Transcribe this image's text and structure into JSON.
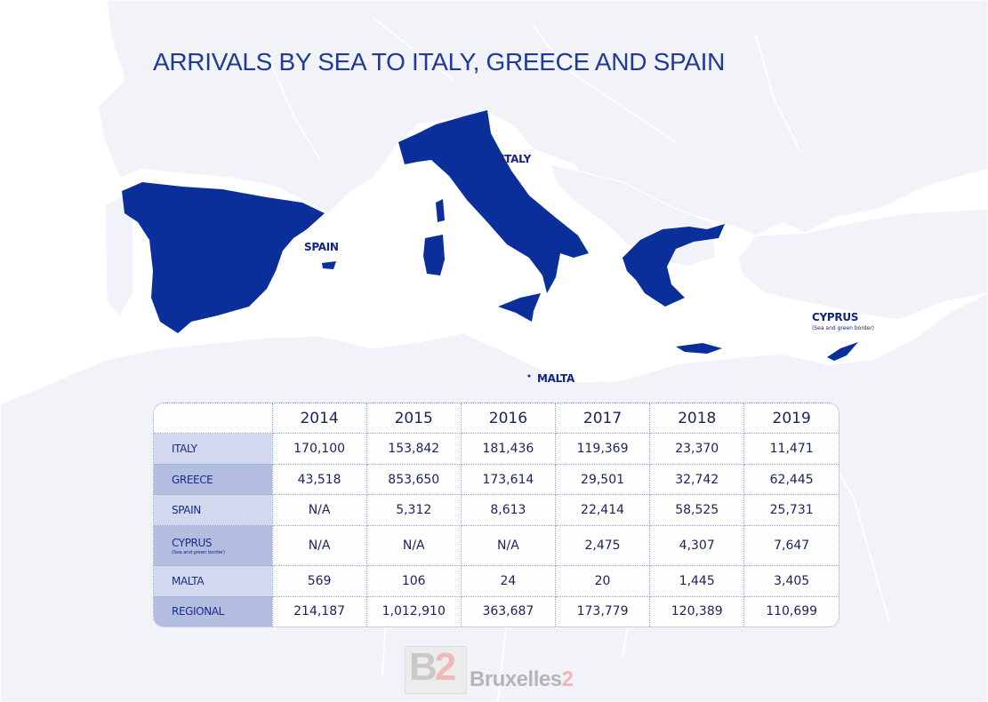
{
  "title": "ARRIVALS BY SEA TO ITALY, GREECE AND SPAIN",
  "map": {
    "labels": {
      "italy": "ITALY",
      "spain": "SPAIN",
      "cyprus": "CYPRUS",
      "cyprus_note": "(Sea and green border)",
      "malta": "MALTA"
    },
    "highlight_color": "#0a2f9a",
    "background_land_color": "#f1f3f9"
  },
  "chart_data": {
    "type": "table",
    "columns": [
      "2014",
      "2015",
      "2016",
      "2017",
      "2018",
      "2019"
    ],
    "rows": [
      {
        "label": "ITALY",
        "values": [
          "170,100",
          "153,842",
          "181,436",
          "119,369",
          "23,370",
          "11,471"
        ]
      },
      {
        "label": "GREECE",
        "values": [
          "43,518",
          "853,650",
          "173,614",
          "29,501",
          "32,742",
          "62,445"
        ]
      },
      {
        "label": "SPAIN",
        "values": [
          "N/A",
          "5,312",
          "8,613",
          "22,414",
          "58,525",
          "25,731"
        ]
      },
      {
        "label": "CYPRUS",
        "note": "(Sea and green border)",
        "values": [
          "N/A",
          "N/A",
          "N/A",
          "2,475",
          "4,307",
          "7,647"
        ]
      },
      {
        "label": "MALTA",
        "values": [
          "569",
          "106",
          "24",
          "20",
          "1,445",
          "3,405"
        ]
      },
      {
        "label": "REGIONAL",
        "values": [
          "214,187",
          "1,012,910",
          "363,687",
          "173,779",
          "120,389",
          "110,699"
        ]
      }
    ]
  },
  "watermark": {
    "mark": "B",
    "mark_accent": "2",
    "text": "Bruxelles",
    "text_accent": "2"
  }
}
